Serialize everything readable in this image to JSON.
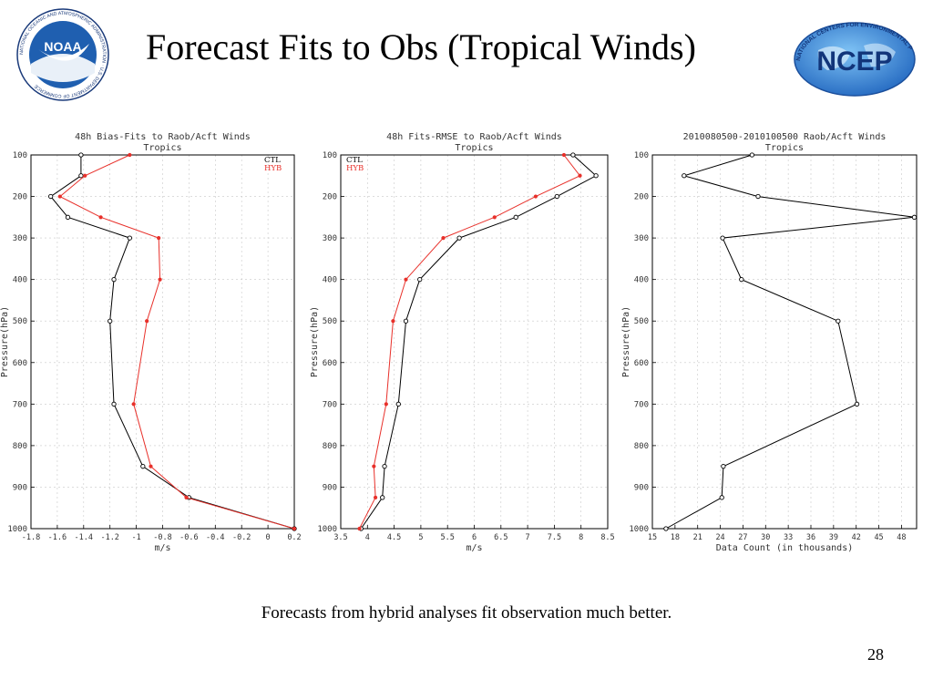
{
  "slide": {
    "title": "Forecast Fits to Obs (Tropical Winds)",
    "caption": "Forecasts from hybrid analyses fit observation much better.",
    "page_number": "28",
    "logos": {
      "noaa": {
        "icon": "noaa-logo",
        "ring_text": "NATIONAL OCEANIC AND ATMOSPHERIC ADMINISTRATION · U.S. DEPARTMENT OF COMMERCE",
        "center_text": "NOAA"
      },
      "ncep": {
        "icon": "ncep-logo",
        "arc_text": "NATIONAL CENTERS FOR ENVIRONMENTAL PREDICTION",
        "center_text": "NCEP"
      }
    }
  },
  "colors": {
    "ctl": "#000000",
    "hyb": "#e8302a",
    "grid": "#c8c8c8"
  },
  "chart_data": [
    {
      "type": "line",
      "title": "48h Bias-Fits to Raob/Acft Winds",
      "subtitle": "Tropics",
      "xlabel": "m/s",
      "ylabel": "Pressure(hPa)",
      "xlim": [
        -1.8,
        0.2
      ],
      "ylim": [
        1000,
        100
      ],
      "xticks": [
        -1.8,
        -1.6,
        -1.4,
        -1.2,
        -1,
        -0.8,
        -0.6,
        -0.4,
        -0.2,
        0,
        0.2
      ],
      "xtick_labels": [
        "-1.8",
        "-1.6",
        "-1.4",
        "-1.2",
        "-1",
        "-0.8",
        "-0.6",
        "-0.4",
        "-0.2",
        "0",
        "0.2"
      ],
      "yticks": [
        100,
        200,
        300,
        400,
        500,
        600,
        700,
        800,
        900,
        1000
      ],
      "grid": true,
      "legend": "top-right",
      "series": [
        {
          "name": "CTL",
          "color": "#000000",
          "marker": "open-circle",
          "x": [
            -1.42,
            -1.42,
            -1.65,
            -1.52,
            -1.05,
            -1.17,
            -1.2,
            -1.17,
            -0.95,
            -0.6,
            0.2
          ],
          "y": [
            100,
            150,
            200,
            250,
            300,
            400,
            500,
            700,
            850,
            925,
            1000
          ]
        },
        {
          "name": "HYB",
          "color": "#e8302a",
          "marker": "star",
          "x": [
            -1.05,
            -1.39,
            -1.58,
            -1.27,
            -0.83,
            -0.82,
            -0.92,
            -1.02,
            -0.89,
            -0.62,
            0.2
          ],
          "y": [
            100,
            150,
            200,
            250,
            300,
            400,
            500,
            700,
            850,
            925,
            1000
          ]
        }
      ]
    },
    {
      "type": "line",
      "title": "48h Fits-RMSE to Raob/Acft Winds",
      "subtitle": "Tropics",
      "xlabel": "m/s",
      "ylabel": "Pressure(hPa)",
      "xlim": [
        3.5,
        8.5
      ],
      "ylim": [
        1000,
        100
      ],
      "xticks": [
        3.5,
        4,
        4.5,
        5,
        5.5,
        6,
        6.5,
        7,
        7.5,
        8,
        8.5
      ],
      "xtick_labels": [
        "3.5",
        "4",
        "4.5",
        "5",
        "5.5",
        "6",
        "6.5",
        "7",
        "7.5",
        "8",
        "8.5"
      ],
      "yticks": [
        100,
        200,
        300,
        400,
        500,
        600,
        700,
        800,
        900,
        1000
      ],
      "grid": true,
      "legend": "top-left",
      "series": [
        {
          "name": "CTL",
          "color": "#000000",
          "marker": "open-circle",
          "x": [
            7.85,
            8.28,
            7.55,
            6.78,
            5.72,
            4.98,
            4.72,
            4.58,
            4.32,
            4.28,
            3.88
          ],
          "y": [
            100,
            150,
            200,
            250,
            300,
            400,
            500,
            700,
            850,
            925,
            1000
          ]
        },
        {
          "name": "HYB",
          "color": "#e8302a",
          "marker": "star",
          "x": [
            7.68,
            7.98,
            7.15,
            6.38,
            5.42,
            4.72,
            4.48,
            4.35,
            4.12,
            4.15,
            3.85
          ],
          "y": [
            100,
            150,
            200,
            250,
            300,
            400,
            500,
            700,
            850,
            925,
            1000
          ]
        }
      ]
    },
    {
      "type": "line",
      "title": "2010080500-2010100500 Raob/Acft Winds",
      "subtitle": "Tropics",
      "xlabel": "Data Count (in thousands)",
      "ylabel": "Pressure(hPa)",
      "xlim": [
        15,
        50
      ],
      "ylim": [
        1000,
        100
      ],
      "xticks": [
        15,
        18,
        21,
        24,
        27,
        30,
        33,
        36,
        39,
        42,
        45,
        48
      ],
      "xtick_labels": [
        "15",
        "18",
        "21",
        "24",
        "27",
        "30",
        "33",
        "36",
        "39",
        "42",
        "45",
        "48"
      ],
      "yticks": [
        100,
        200,
        300,
        400,
        500,
        600,
        700,
        800,
        900,
        1000
      ],
      "grid": true,
      "series": [
        {
          "color": "#000000",
          "marker": "open-circle",
          "x": [
            28.2,
            19.2,
            29.0,
            49.7,
            24.3,
            26.8,
            39.6,
            42.1,
            24.4,
            24.2,
            16.8
          ],
          "y": [
            100,
            150,
            200,
            250,
            300,
            400,
            500,
            700,
            850,
            925,
            1000
          ]
        }
      ]
    }
  ]
}
